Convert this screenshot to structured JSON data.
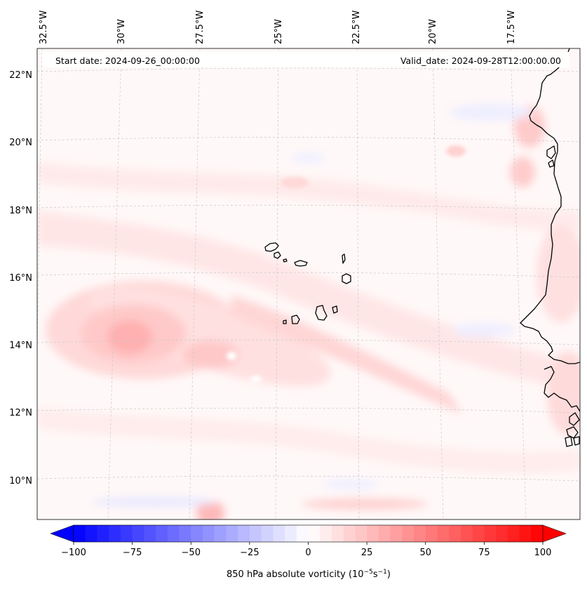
{
  "header": {
    "start_date": "Start date: 2024-09-26_00:00:00",
    "valid_date": "Valid_date: 2024-09-28T12:00:00.00"
  },
  "longitude_labels": [
    "32.5°W",
    "30°W",
    "27.5°W",
    "25°W",
    "22.5°W",
    "20°W",
    "17.5°W"
  ],
  "latitude_labels": [
    "22°N",
    "20°N",
    "18°N",
    "16°N",
    "14°N",
    "12°N",
    "10°N"
  ],
  "colorbar": {
    "label_main": "850 hPa absolute vorticity (10",
    "label_exp1": "−5",
    "label_mid": "s",
    "label_exp2": "−1",
    "label_end": ")",
    "ticks": [
      "−100",
      "−75",
      "−50",
      "−25",
      "0",
      "25",
      "50",
      "75",
      "100"
    ],
    "min": -100,
    "max": 100,
    "levels": 40,
    "color_negative": "#0000ff",
    "color_zero": "#ffffff",
    "color_positive": "#ff0000"
  }
}
